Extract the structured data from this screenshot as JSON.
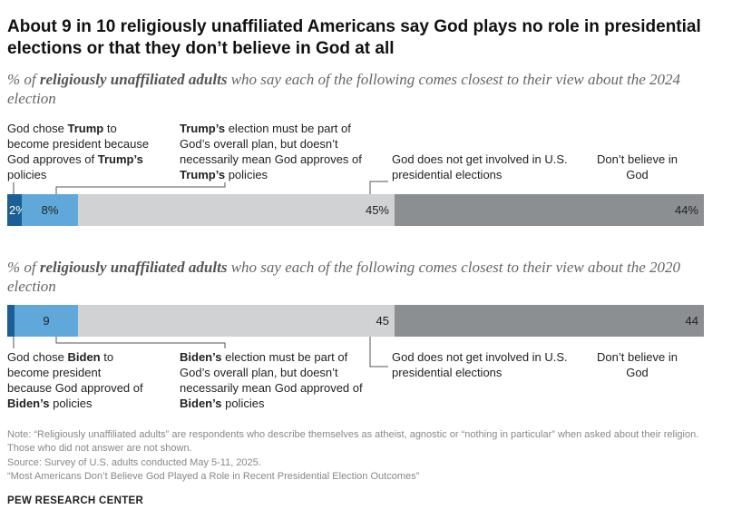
{
  "title": "About 9 in 10 religiously unaffiliated Americans say God plays no role in presidential elections or that they don’t believe in God at all",
  "charts": [
    {
      "subtitle_pre": "% of ",
      "subtitle_bold": "religiously unaffiliated adults",
      "subtitle_post": " who say each of the following comes closest to their view about the 2024 election",
      "value_labels": [
        "2%",
        "8%",
        "45%",
        "44%"
      ],
      "categories": [
        {
          "pre": "God chose ",
          "b1": "Trump",
          "mid": " to become president because God approves of ",
          "b2": "Trump’s",
          "post": " policies"
        },
        {
          "pre": "",
          "b1": "Trump’s",
          "mid": " election must be part of God’s overall plan, but doesn’t necessarily mean God approves of ",
          "b2": "Trump’s",
          "post": " policies"
        },
        {
          "pre": "God does not get involved in U.S. presidential elections",
          "b1": "",
          "mid": "",
          "b2": "",
          "post": ""
        },
        {
          "pre": "Don’t believe in God",
          "b1": "",
          "mid": "",
          "b2": "",
          "post": ""
        }
      ]
    },
    {
      "subtitle_pre": "% of ",
      "subtitle_bold": "religiously unaffiliated adults",
      "subtitle_post": " who say each of the following comes closest to their view about the 2020 election",
      "value_labels": [
        "",
        "9",
        "45",
        "44"
      ],
      "categories": [
        {
          "pre": "God chose ",
          "b1": "Biden",
          "mid": " to become president because God approved of ",
          "b2": "Biden’s",
          "post": " policies"
        },
        {
          "pre": "",
          "b1": "Biden’s",
          "mid": " election must be part of God’s overall plan, but doesn’t necessarily mean God approved of ",
          "b2": "Biden’s",
          "post": " policies"
        },
        {
          "pre": "God does not get involved in U.S. presidential elections",
          "b1": "",
          "mid": "",
          "b2": "",
          "post": ""
        },
        {
          "pre": "Don’t believe in God",
          "b1": "",
          "mid": "",
          "b2": "",
          "post": ""
        }
      ]
    }
  ],
  "chart_data": [
    {
      "type": "bar",
      "orientation": "horizontal-stacked",
      "categories": [
        "God chose Trump to become president because God approves of Trump’s policies",
        "Trump’s election must be part of God’s overall plan, but doesn’t necessarily mean God approves of Trump’s policies",
        "God does not get involved in U.S. presidential elections",
        "Don’t believe in God"
      ],
      "values": [
        2,
        8,
        45,
        44
      ],
      "colors": [
        "#1b5f94",
        "#5fa8d9",
        "#d0d2d3",
        "#8c8f92"
      ],
      "xlim": [
        0,
        100
      ]
    },
    {
      "type": "bar",
      "orientation": "horizontal-stacked",
      "categories": [
        "God chose Biden to become president because God approved of Biden’s policies",
        "Biden’s election must be part of God’s overall plan, but doesn’t necessarily mean God approved of Biden’s policies",
        "God does not get involved in U.S. presidential elections",
        "Don’t believe in God"
      ],
      "values": [
        1,
        9,
        45,
        44
      ],
      "colors": [
        "#1b5f94",
        "#5fa8d9",
        "#d0d2d3",
        "#8c8f92"
      ],
      "xlim": [
        0,
        100
      ]
    }
  ],
  "notes": [
    "Note: “Religiously unaffiliated adults” are respondents who describe themselves as atheist, agnostic or “nothing in particular” when asked about their religion. Those who did not answer are not shown.",
    "Source: Survey of U.S. adults conducted May 5-11, 2025.",
    "“Most Americans Don’t Believe God Played a Role in Recent Presidential Election Outcomes”"
  ],
  "source_org": "PEW RESEARCH CENTER"
}
